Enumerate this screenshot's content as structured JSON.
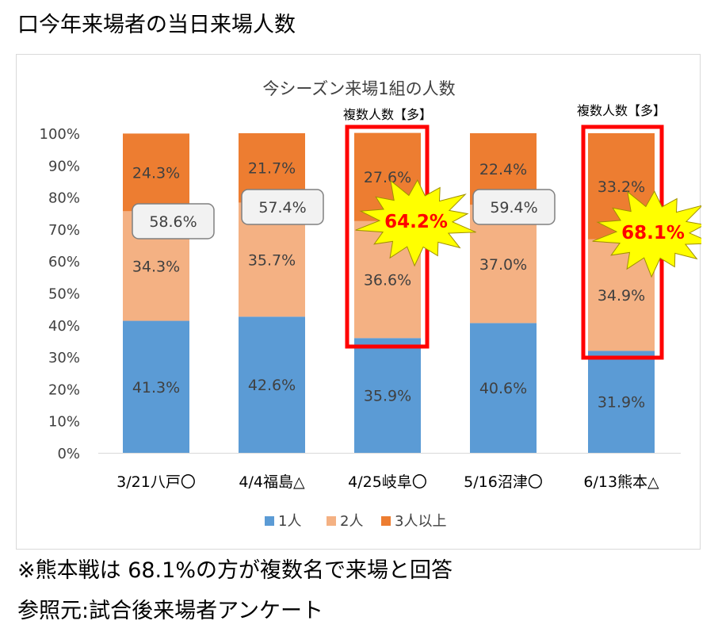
{
  "heading": "口今年来場者の当日来場人数",
  "note_1": "※熊本戦は 68.1%の方が複数名で来場と回答",
  "note_2": "参照元:試合後来場者アンケート",
  "colors": {
    "one": "#5b9bd5",
    "two": "#f4b183",
    "three_plus": "#ed7d31",
    "highlight_box": "#ff0000",
    "burst_fill": "#ffff00",
    "burst_text": "#ff0000",
    "callout_fill": "#f2f2f2"
  },
  "chart_data": {
    "type": "bar",
    "stacked": true,
    "title": "今シーズン来場1組の人数",
    "categories": [
      "3/21八戸〇",
      "4/4福島△",
      "4/25岐阜〇",
      "5/16沼津〇",
      "6/13熊本△"
    ],
    "series": [
      {
        "name": "1人",
        "values": [
          41.3,
          42.6,
          35.9,
          40.6,
          31.9
        ]
      },
      {
        "name": "2人",
        "values": [
          34.3,
          35.7,
          36.6,
          37.0,
          34.9
        ]
      },
      {
        "name": "3人以上",
        "values": [
          24.3,
          21.7,
          27.6,
          22.4,
          33.2
        ]
      }
    ],
    "data_labels": [
      [
        "41.3%",
        "42.6%",
        "35.9%",
        "40.6%",
        "31.9%"
      ],
      [
        "34.3%",
        "35.7%",
        "36.6%",
        "37.0%",
        "34.9%"
      ],
      [
        "24.3%",
        "21.7%",
        "27.6%",
        "22.4%",
        "33.2%"
      ]
    ],
    "ylim": [
      0,
      100
    ],
    "yticks": [
      "0%",
      "10%",
      "20%",
      "30%",
      "40%",
      "50%",
      "60%",
      "70%",
      "80%",
      "90%",
      "100%"
    ],
    "legend_position": "bottom",
    "grid": false,
    "callouts": [
      {
        "category": "3/21八戸〇",
        "text": "58.6%"
      },
      {
        "category": "4/4福島△",
        "text": "57.4%"
      },
      {
        "category": "5/16沼津〇",
        "text": "59.4%"
      }
    ],
    "highlights": [
      {
        "category": "4/25岐阜〇",
        "label": "複数人数【多】",
        "burst": "64.2%"
      },
      {
        "category": "6/13熊本△",
        "label": "複数人数【多】",
        "burst": "68.1%"
      }
    ]
  }
}
